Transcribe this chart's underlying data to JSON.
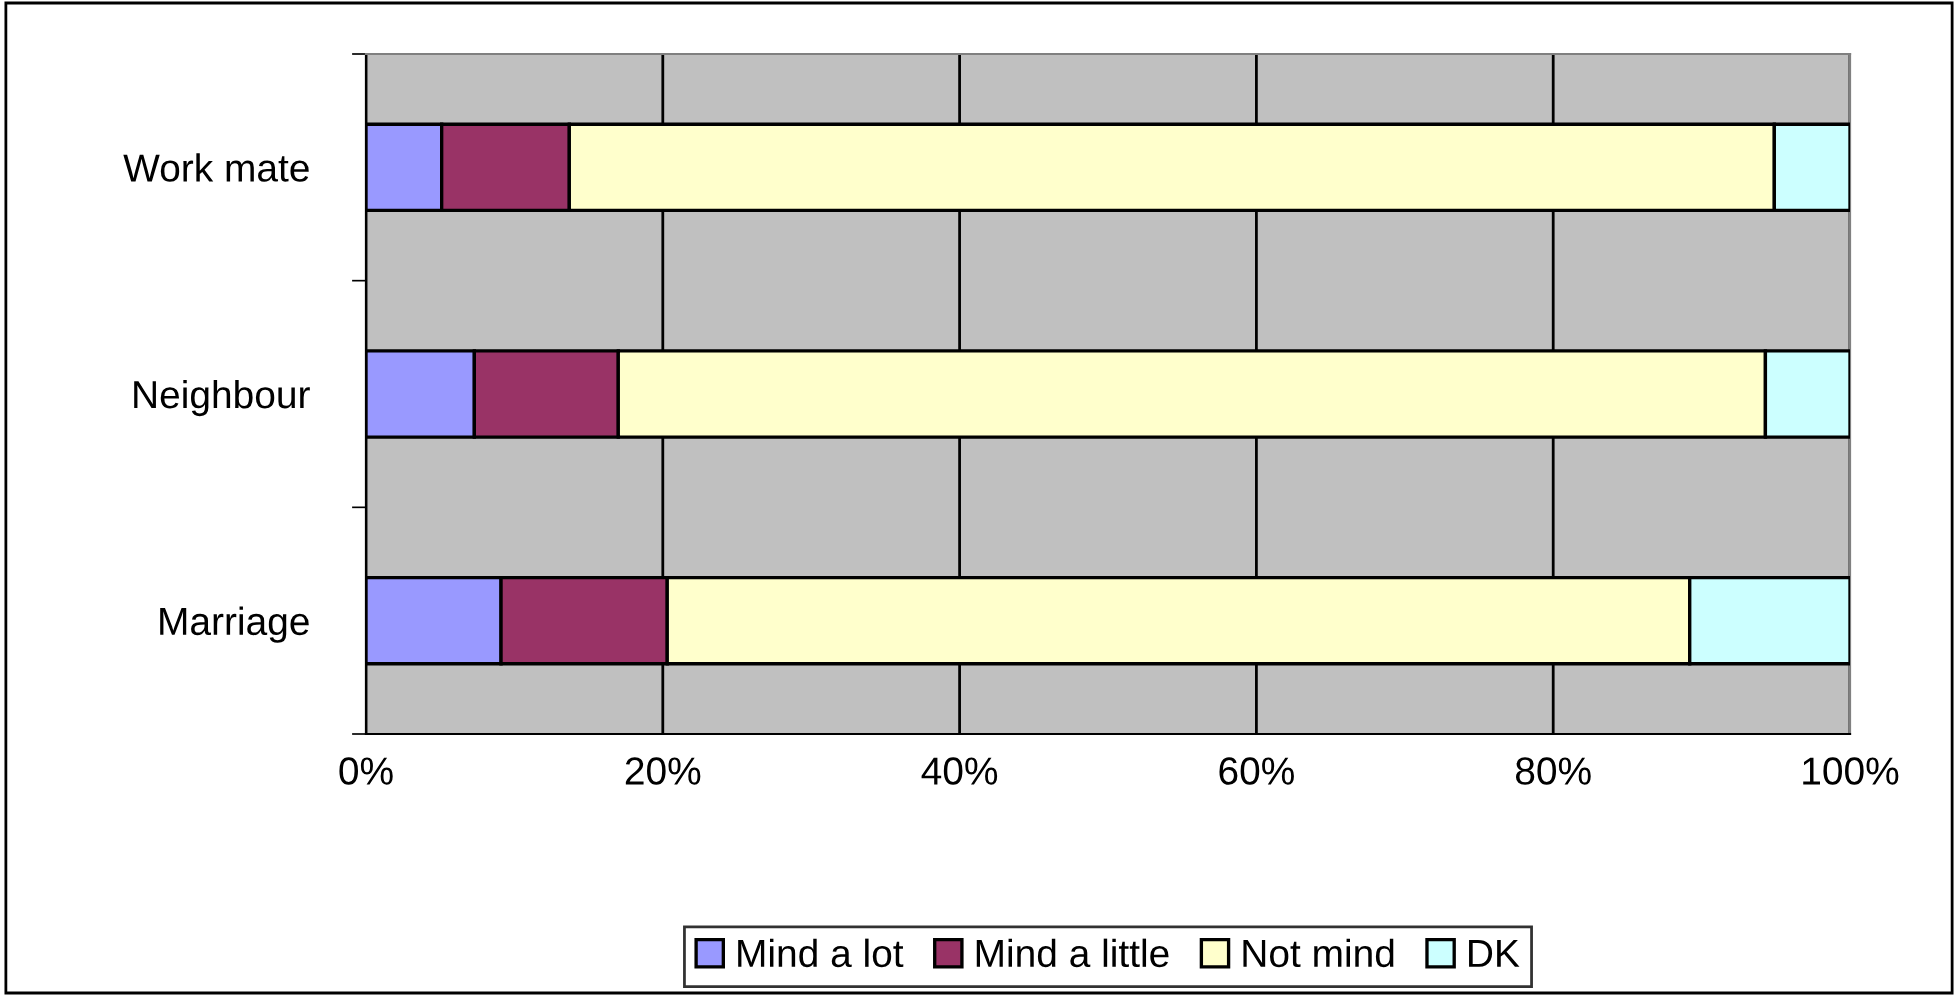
{
  "chart_data": {
    "type": "bar",
    "orientation": "horizontal",
    "stacked": true,
    "categories": [
      "Work mate",
      "Neighbour",
      "Marriage"
    ],
    "series": [
      {
        "name": "Mind a lot",
        "color": "#9999ff",
        "values": [
          5.1,
          7.3,
          9.1
        ]
      },
      {
        "name": "Mind a little",
        "color": "#993366",
        "values": [
          8.6,
          9.7,
          11.2
        ]
      },
      {
        "name": "Not mind",
        "color": "#ffffcc",
        "values": [
          81.2,
          77.3,
          68.9
        ]
      },
      {
        "name": "DK",
        "color": "#ccffff",
        "values": [
          5.1,
          5.7,
          10.8
        ]
      }
    ],
    "xlim": [
      0,
      100
    ],
    "xticks": [
      {
        "value": 0,
        "label": "0%"
      },
      {
        "value": 20,
        "label": "20%"
      },
      {
        "value": 40,
        "label": "40%"
      },
      {
        "value": 60,
        "label": "60%"
      },
      {
        "value": 80,
        "label": "80%"
      },
      {
        "value": 100,
        "label": "100%"
      }
    ],
    "grid": "x",
    "legend": "bottom"
  }
}
